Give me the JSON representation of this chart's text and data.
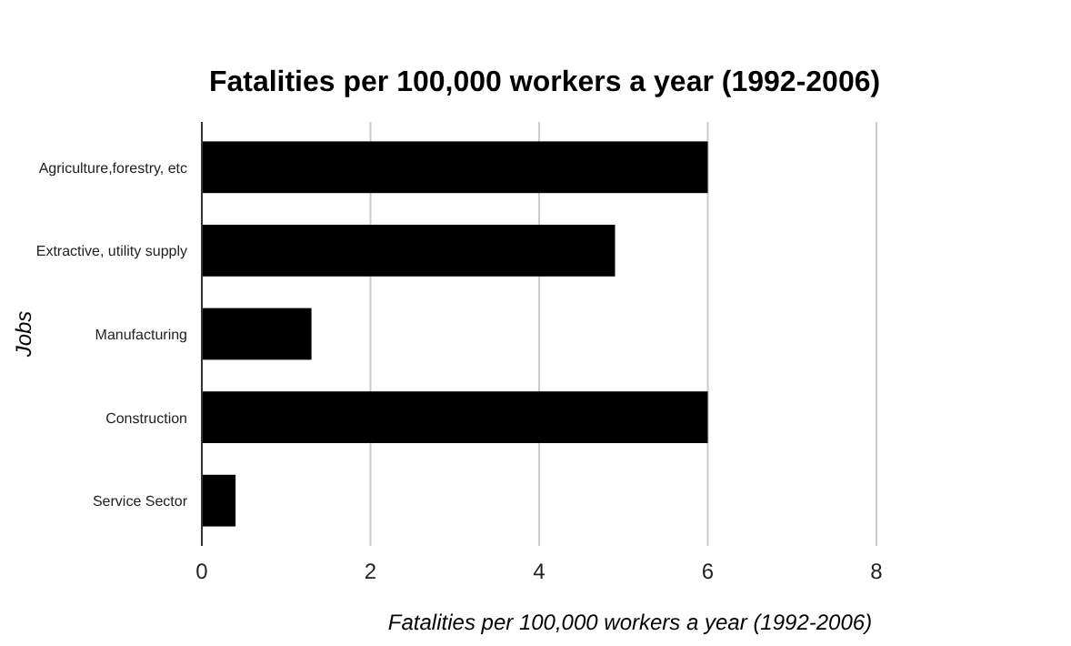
{
  "chart_data": {
    "type": "bar",
    "orientation": "horizontal",
    "title": "Fatalities per 100,000 workers a year (1992-2006)",
    "xlabel": "Fatalities per 100,000 workers a year (1992-2006)",
    "ylabel": "Jobs",
    "categories": [
      "Agriculture,forestry, etc",
      "Extractive, utility supply",
      "Manufacturing",
      "Construction",
      "Service Sector"
    ],
    "values": [
      6,
      4.9,
      1.3,
      6,
      0.4
    ],
    "color": "#000000",
    "xlim": [
      0,
      8
    ],
    "xticks": [
      0,
      2,
      4,
      6,
      8
    ],
    "grid": "x"
  }
}
